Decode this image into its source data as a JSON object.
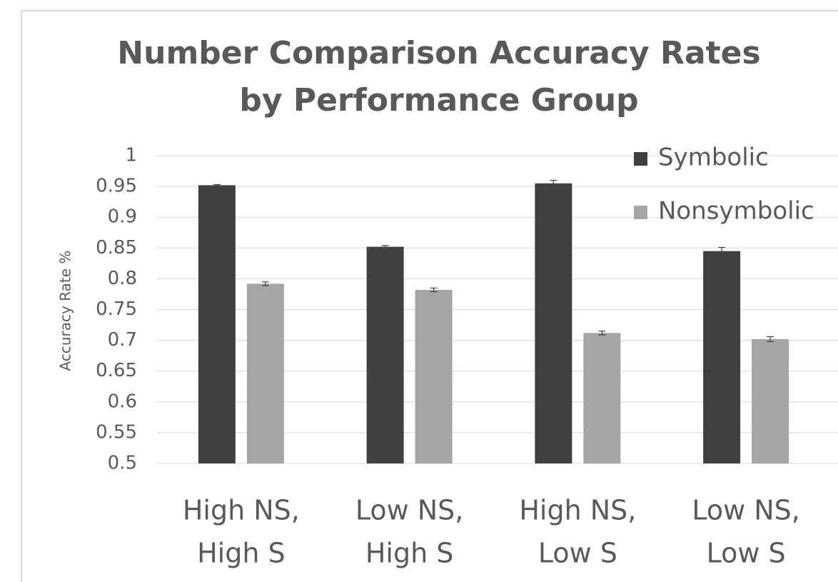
{
  "chart_data": {
    "type": "bar",
    "title": [
      "Number Comparison Accuracy Rates",
      "by Performance Group"
    ],
    "y_label": "Accuracy Rate %",
    "categories": [
      [
        "High NS,",
        "High S"
      ],
      [
        "Low NS,",
        "High S"
      ],
      [
        "High NS,",
        "Low S"
      ],
      [
        "Low NS,",
        "Low S"
      ]
    ],
    "series": [
      {
        "name": "Symbolic",
        "color": "#404040",
        "values": [
          0.952,
          0.852,
          0.955,
          0.845
        ],
        "errors": [
          0.001,
          0.002,
          0.005,
          0.006
        ]
      },
      {
        "name": "Nonsymbolic",
        "color": "#a5a5a5",
        "values": [
          0.792,
          0.782,
          0.712,
          0.702
        ],
        "errors": [
          0.003,
          0.003,
          0.003,
          0.004
        ]
      }
    ],
    "ylim": [
      0.5,
      1
    ],
    "yticks": [
      0.5,
      0.55,
      0.6,
      0.65,
      0.7,
      0.75,
      0.8,
      0.85,
      0.9,
      0.95,
      1
    ],
    "grid": true,
    "legend": "top-right"
  }
}
